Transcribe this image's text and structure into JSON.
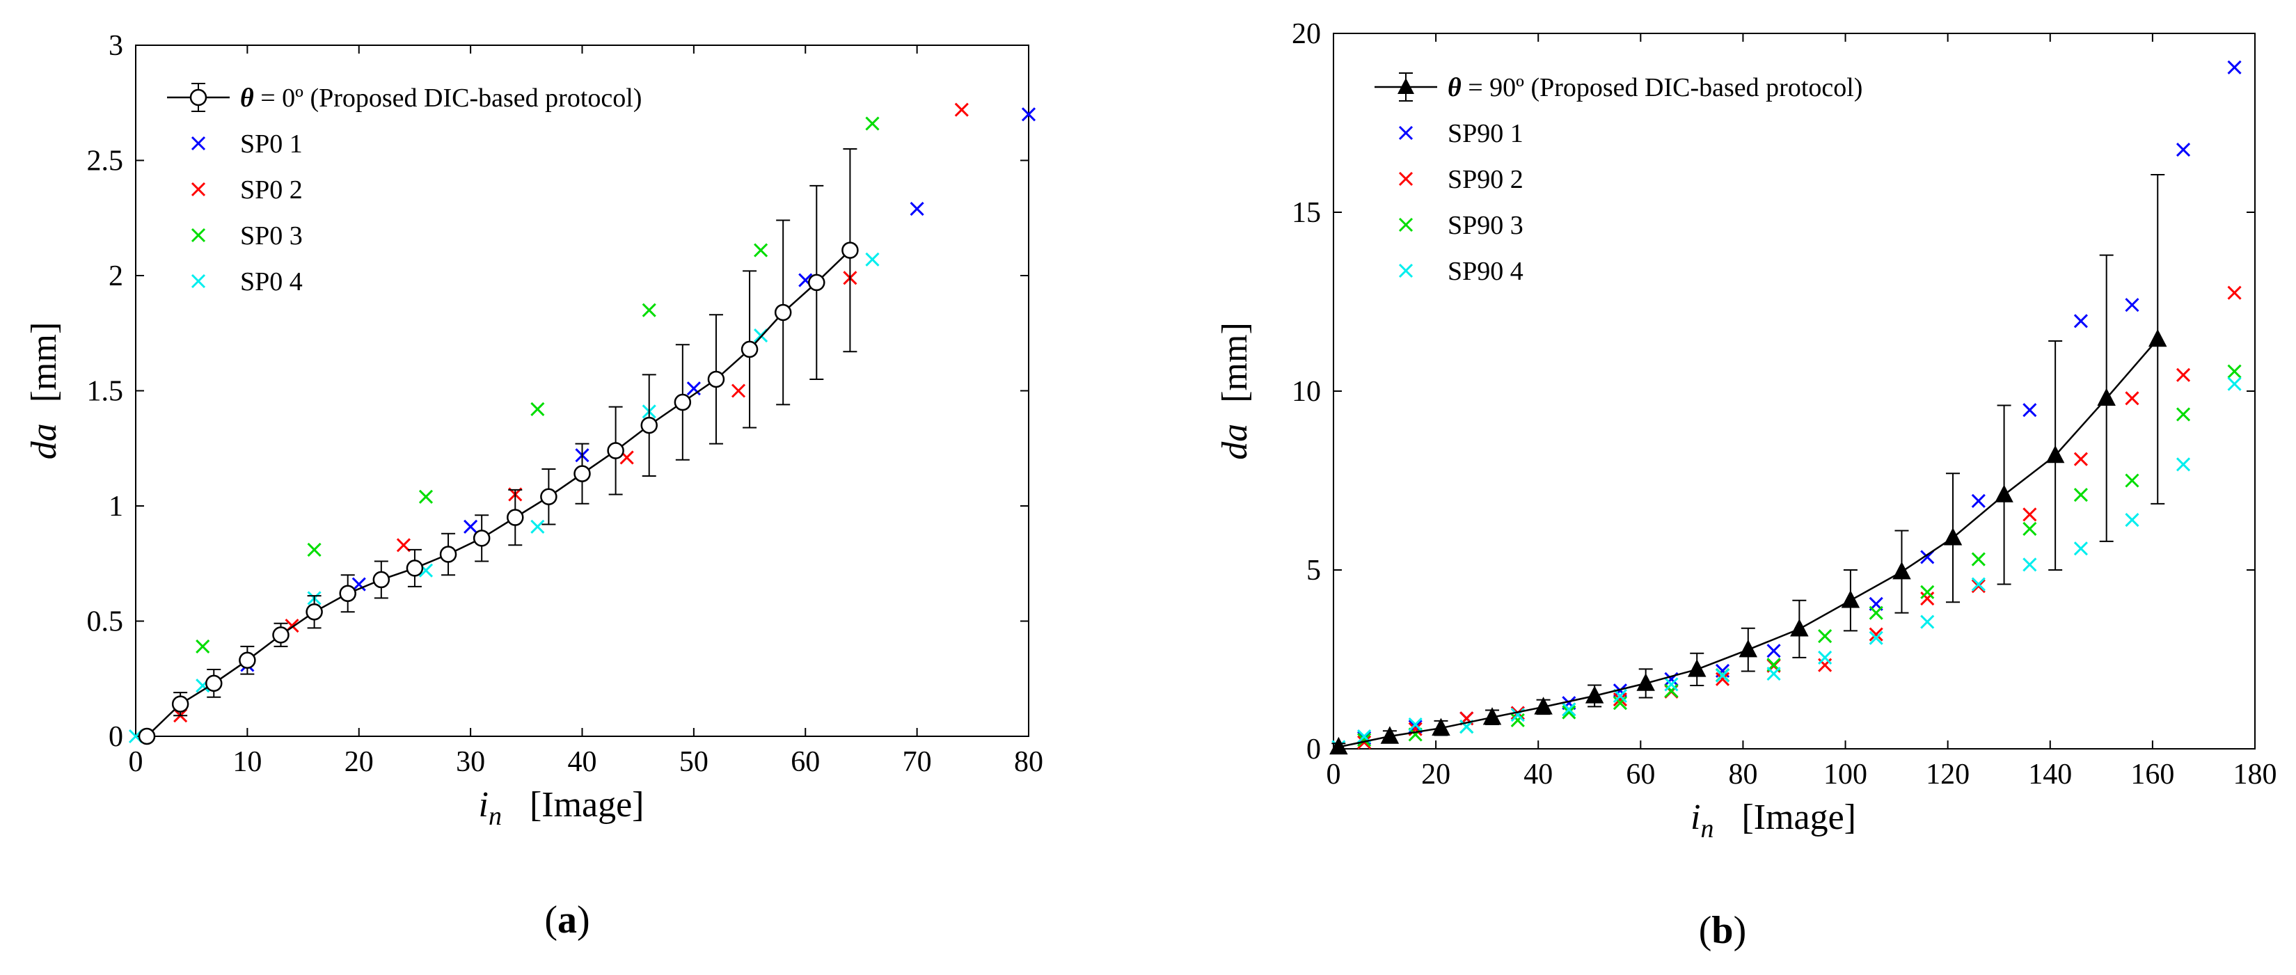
{
  "chart_data": [
    {
      "type": "scatter",
      "panel_label": "(a)",
      "xlabel_var": "i",
      "xlabel_sub": "n",
      "xlabel_unit": "[Image]",
      "ylabel_var": "da",
      "ylabel_unit": "[mm]",
      "xlim": [
        0,
        80
      ],
      "ylim": [
        0,
        3
      ],
      "xticks": [
        0,
        10,
        20,
        30,
        40,
        50,
        60,
        70,
        80
      ],
      "yticks": [
        0,
        0.5,
        1,
        1.5,
        2,
        2.5,
        3
      ],
      "grid": false,
      "legend_position": "top-left",
      "legend": [
        {
          "symbol": "θ",
          "label": " = 0º (Proposed DIC-based protocol)"
        },
        {
          "label": "SP0 1"
        },
        {
          "label": "SP0 2"
        },
        {
          "label": "SP0 3"
        },
        {
          "label": "SP0 4"
        }
      ],
      "mean_series": {
        "name": "θ = 0º (Proposed DIC-based protocol)",
        "marker": "open-circle",
        "color": "#000000",
        "x": [
          1,
          4,
          7,
          10,
          13,
          16,
          19,
          22,
          25,
          28,
          31,
          34,
          37,
          40,
          43,
          46,
          49,
          52,
          55,
          58,
          61,
          64
        ],
        "y": [
          0,
          0.14,
          0.23,
          0.33,
          0.44,
          0.54,
          0.62,
          0.68,
          0.73,
          0.79,
          0.86,
          0.95,
          1.04,
          1.14,
          1.24,
          1.35,
          1.45,
          1.55,
          1.68,
          1.84,
          1.97,
          2.11
        ],
        "err": [
          0,
          0.05,
          0.06,
          0.06,
          0.05,
          0.07,
          0.08,
          0.08,
          0.08,
          0.09,
          0.1,
          0.12,
          0.12,
          0.13,
          0.19,
          0.22,
          0.25,
          0.28,
          0.34,
          0.4,
          0.42,
          0.44
        ]
      },
      "series": [
        {
          "name": "SP0 1",
          "color": "#0000ff",
          "x": [
            10,
            20,
            30,
            40,
            50,
            60,
            70,
            80
          ],
          "y": [
            0.31,
            0.66,
            0.91,
            1.22,
            1.51,
            1.98,
            2.29,
            2.7
          ]
        },
        {
          "name": "SP0 2",
          "color": "#ff0000",
          "x": [
            4,
            14,
            24,
            34,
            44,
            54,
            64,
            74
          ],
          "y": [
            0.09,
            0.48,
            0.83,
            1.05,
            1.21,
            1.5,
            1.99,
            2.72
          ]
        },
        {
          "name": "SP0 3",
          "color": "#00dd00",
          "x": [
            6,
            16,
            26,
            36,
            46,
            56,
            66
          ],
          "y": [
            0.39,
            0.81,
            1.04,
            1.42,
            1.85,
            2.11,
            2.66
          ]
        },
        {
          "name": "SP0 4",
          "color": "#00eeee",
          "x": [
            0,
            6,
            16,
            26,
            36,
            46,
            56,
            66
          ],
          "y": [
            0,
            0.22,
            0.6,
            0.72,
            0.91,
            1.41,
            1.74,
            2.07
          ]
        }
      ]
    },
    {
      "type": "scatter",
      "panel_label": "(b)",
      "xlabel_var": "i",
      "xlabel_sub": "n",
      "xlabel_unit": "[Image]",
      "ylabel_var": "da",
      "ylabel_unit": "[mm]",
      "xlim": [
        0,
        180
      ],
      "ylim": [
        0,
        20
      ],
      "xticks": [
        0,
        20,
        40,
        60,
        80,
        100,
        120,
        140,
        160,
        180
      ],
      "yticks": [
        0,
        5,
        10,
        15,
        20
      ],
      "grid": false,
      "legend_position": "top-left",
      "legend": [
        {
          "symbol": "θ",
          "label": " = 90º (Proposed DIC-based protocol)"
        },
        {
          "label": "SP90 1"
        },
        {
          "label": "SP90 2"
        },
        {
          "label": "SP90 3"
        },
        {
          "label": "SP90 4"
        }
      ],
      "mean_series": {
        "name": "θ = 90º (Proposed DIC-based protocol)",
        "marker": "filled-triangle",
        "color": "#000000",
        "x": [
          1,
          11,
          21,
          31,
          41,
          51,
          61,
          71,
          81,
          91,
          101,
          111,
          121,
          131,
          141,
          151,
          161
        ],
        "y": [
          0.05,
          0.35,
          0.58,
          0.88,
          1.17,
          1.48,
          1.83,
          2.22,
          2.77,
          3.35,
          4.15,
          4.95,
          5.9,
          7.1,
          8.2,
          9.8,
          11.45
        ],
        "err": [
          0.1,
          0.15,
          0.2,
          0.2,
          0.2,
          0.3,
          0.4,
          0.45,
          0.6,
          0.8,
          0.85,
          1.15,
          1.8,
          2.5,
          3.2,
          4.0,
          4.6
        ]
      },
      "series": [
        {
          "name": "SP90 1",
          "color": "#0000ff",
          "x": [
            6,
            16,
            26,
            36,
            46,
            56,
            66,
            76,
            86,
            106,
            116,
            126,
            136,
            146,
            156,
            166,
            176
          ],
          "y": [
            0.3,
            0.62,
            0.85,
            1.0,
            1.28,
            1.63,
            1.95,
            2.18,
            2.74,
            4.05,
            5.36,
            6.93,
            9.47,
            11.96,
            12.41,
            16.75,
            19.05
          ]
        },
        {
          "name": "SP90 2",
          "color": "#ff0000",
          "x": [
            6,
            16,
            26,
            36,
            46,
            56,
            66,
            76,
            86,
            96,
            106,
            116,
            126,
            136,
            146,
            156,
            166,
            176
          ],
          "y": [
            0.18,
            0.55,
            0.85,
            1.0,
            1.1,
            1.38,
            1.6,
            1.95,
            2.32,
            2.34,
            3.2,
            4.2,
            4.55,
            6.55,
            8.1,
            9.8,
            10.45,
            12.75
          ]
        },
        {
          "name": "SP90 3",
          "color": "#00dd00",
          "x": [
            6,
            16,
            26,
            36,
            46,
            56,
            66,
            76,
            86,
            96,
            106,
            116,
            126,
            136,
            146,
            156,
            166,
            176
          ],
          "y": [
            0.25,
            0.4,
            0.62,
            0.8,
            1.02,
            1.28,
            1.62,
            2.06,
            2.35,
            3.15,
            3.8,
            4.38,
            5.3,
            6.15,
            7.1,
            7.5,
            9.35,
            10.55
          ]
        },
        {
          "name": "SP90 4",
          "color": "#00eeee",
          "x": [
            1,
            6,
            16,
            26,
            36,
            46,
            56,
            66,
            76,
            86,
            96,
            106,
            116,
            126,
            136,
            146,
            156,
            166,
            176
          ],
          "y": [
            0.05,
            0.35,
            0.68,
            0.62,
            0.95,
            1.1,
            1.48,
            1.8,
            2.05,
            2.1,
            2.55,
            3.1,
            3.55,
            4.6,
            5.15,
            5.6,
            6.4,
            7.95,
            10.2
          ]
        }
      ]
    }
  ]
}
